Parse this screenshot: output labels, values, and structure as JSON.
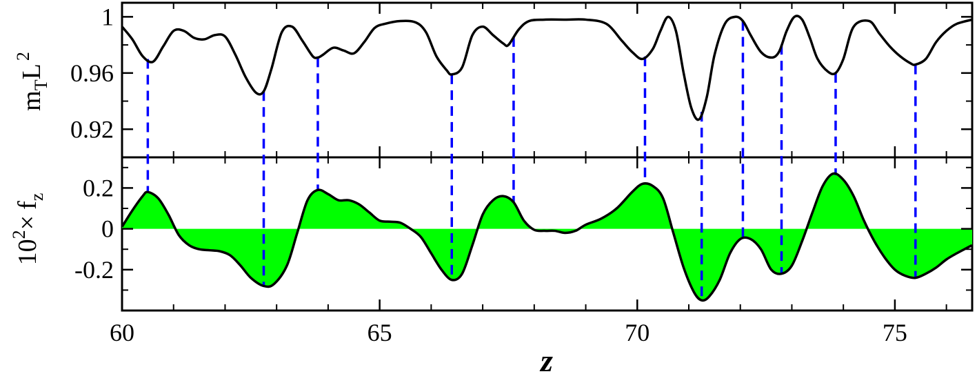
{
  "chart_data": [
    {
      "type": "line",
      "panel": "top",
      "ylabel_main": "m",
      "ylabel_sub": "T",
      "ylabel_mid": "L",
      "ylabel_sup": "2",
      "xlim": [
        60,
        76.5
      ],
      "ylim": [
        0.9,
        1.01
      ],
      "y_ticks": [
        0.92,
        0.96,
        1.0
      ],
      "y_tick_labels": [
        "0.92",
        "0.96",
        "1"
      ],
      "grid": false,
      "line_color": "#000000",
      "series": [
        {
          "x": [
            60.0,
            60.2,
            60.4,
            60.6,
            60.8,
            61.0,
            61.2,
            61.4,
            61.6,
            61.8,
            62.0,
            62.2,
            62.4,
            62.6,
            62.75,
            62.9,
            63.1,
            63.3,
            63.5,
            63.7,
            63.8,
            63.9,
            64.1,
            64.3,
            64.5,
            64.7,
            64.9,
            65.1,
            65.4,
            65.7,
            65.9,
            66.1,
            66.3,
            66.4,
            66.6,
            66.8,
            67.0,
            67.2,
            67.4,
            67.5,
            67.7,
            67.9,
            68.2,
            68.6,
            69.0,
            69.4,
            69.7,
            69.9,
            70.1,
            70.3,
            70.45,
            70.6,
            70.75,
            70.9,
            71.05,
            71.2,
            71.35,
            71.5,
            71.7,
            71.9,
            72.05,
            72.2,
            72.4,
            72.6,
            72.75,
            72.9,
            73.05,
            73.2,
            73.35,
            73.5,
            73.7,
            73.85,
            74.0,
            74.2,
            74.5,
            74.7,
            74.9,
            75.1,
            75.3,
            75.4,
            75.6,
            75.8,
            76.0,
            76.2,
            76.5
          ],
          "y": [
            0.993,
            0.984,
            0.972,
            0.968,
            0.979,
            0.99,
            0.99,
            0.985,
            0.984,
            0.987,
            0.986,
            0.973,
            0.957,
            0.946,
            0.947,
            0.963,
            0.989,
            0.993,
            0.983,
            0.972,
            0.971,
            0.973,
            0.978,
            0.976,
            0.974,
            0.982,
            0.992,
            0.995,
            0.997,
            0.996,
            0.989,
            0.972,
            0.962,
            0.959,
            0.964,
            0.987,
            0.993,
            0.987,
            0.981,
            0.98,
            0.991,
            0.997,
            0.998,
            0.998,
            0.998,
            0.995,
            0.983,
            0.975,
            0.97,
            0.977,
            0.99,
            1.0,
            0.99,
            0.96,
            0.935,
            0.927,
            0.943,
            0.973,
            0.995,
            1.0,
            0.997,
            0.987,
            0.975,
            0.971,
            0.975,
            0.99,
            1.0,
            0.998,
            0.985,
            0.97,
            0.961,
            0.96,
            0.97,
            0.993,
            0.997,
            0.988,
            0.979,
            0.972,
            0.967,
            0.966,
            0.97,
            0.982,
            0.99,
            0.995,
            0.998
          ]
        }
      ]
    },
    {
      "type": "area",
      "panel": "bottom",
      "xlabel": "z",
      "ylabel_base": "10",
      "ylabel_sup": "2",
      "ylabel_times": "×",
      "ylabel_f": "f",
      "ylabel_sub": "z",
      "xlim": [
        60,
        76.5
      ],
      "ylim": [
        -0.4,
        0.35
      ],
      "x_ticks": [
        60,
        65,
        70,
        75
      ],
      "x_tick_labels": [
        "60",
        "65",
        "70",
        "75"
      ],
      "y_ticks": [
        -0.2,
        0,
        0.2
      ],
      "y_tick_labels": [
        "-0.2",
        "0",
        "0.2"
      ],
      "grid": false,
      "fill_color": "#00ff00",
      "line_color": "#000000",
      "series": [
        {
          "x": [
            60.0,
            60.2,
            60.4,
            60.5,
            60.7,
            60.9,
            61.1,
            61.3,
            61.5,
            61.7,
            61.9,
            62.1,
            62.3,
            62.5,
            62.75,
            62.95,
            63.2,
            63.4,
            63.6,
            63.8,
            64.0,
            64.2,
            64.4,
            64.6,
            64.8,
            65.0,
            65.2,
            65.4,
            65.6,
            65.8,
            66.0,
            66.2,
            66.4,
            66.6,
            66.8,
            67.0,
            67.2,
            67.4,
            67.6,
            67.8,
            68.0,
            68.2,
            68.4,
            68.6,
            68.8,
            69.0,
            69.3,
            69.6,
            69.9,
            70.1,
            70.3,
            70.5,
            70.7,
            70.9,
            71.1,
            71.25,
            71.4,
            71.6,
            71.8,
            72.0,
            72.2,
            72.4,
            72.6,
            72.8,
            73.0,
            73.2,
            73.4,
            73.6,
            73.8,
            74.0,
            74.2,
            74.4,
            74.6,
            74.8,
            75.0,
            75.2,
            75.4,
            75.6,
            75.8,
            76.0,
            76.2,
            76.5
          ],
          "y": [
            0.01,
            0.09,
            0.16,
            0.18,
            0.15,
            0.07,
            -0.03,
            -0.08,
            -0.1,
            -0.105,
            -0.11,
            -0.13,
            -0.18,
            -0.24,
            -0.28,
            -0.27,
            -0.18,
            -0.02,
            0.14,
            0.19,
            0.17,
            0.14,
            0.14,
            0.12,
            0.08,
            0.04,
            0.035,
            0.03,
            0.0,
            -0.04,
            -0.12,
            -0.2,
            -0.25,
            -0.22,
            -0.08,
            0.07,
            0.14,
            0.16,
            0.13,
            0.04,
            -0.005,
            -0.01,
            -0.01,
            -0.02,
            -0.01,
            0.02,
            0.05,
            0.1,
            0.18,
            0.22,
            0.21,
            0.15,
            -0.02,
            -0.19,
            -0.31,
            -0.35,
            -0.33,
            -0.25,
            -0.12,
            -0.05,
            -0.05,
            -0.1,
            -0.2,
            -0.22,
            -0.18,
            -0.06,
            0.08,
            0.21,
            0.27,
            0.24,
            0.16,
            0.04,
            -0.06,
            -0.14,
            -0.2,
            -0.23,
            -0.24,
            -0.22,
            -0.19,
            -0.15,
            -0.12,
            -0.08
          ]
        }
      ],
      "markers": {
        "color": "#0000ff",
        "style": "dashed",
        "x": [
          60.5,
          62.75,
          63.8,
          66.4,
          67.6,
          70.15,
          71.25,
          72.05,
          72.8,
          73.85,
          75.4
        ]
      }
    }
  ]
}
